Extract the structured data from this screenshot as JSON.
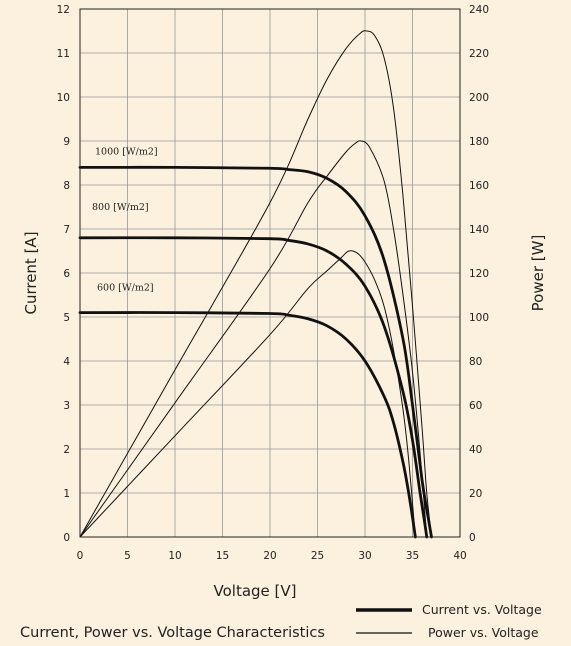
{
  "chart_data": {
    "type": "line",
    "title": "Current, Power vs. Voltage Characteristics",
    "xlabel": "Voltage [V]",
    "ylabel_left": "Current [A]",
    "ylabel_right": "Power [W]",
    "xlim": [
      0,
      40
    ],
    "ylim_left": [
      0,
      12
    ],
    "ylim_right": [
      0,
      240
    ],
    "xticks": [
      0,
      5,
      10,
      15,
      20,
      25,
      30,
      35,
      40
    ],
    "yticks_left": [
      0,
      1,
      2,
      3,
      4,
      5,
      6,
      7,
      8,
      9,
      10,
      11,
      12
    ],
    "yticks_right": [
      0,
      20,
      40,
      60,
      80,
      100,
      120,
      140,
      160,
      180,
      200,
      220,
      240
    ],
    "grid": true,
    "legend": {
      "position": "bottom-right",
      "entries": [
        {
          "label": "Current vs. Voltage",
          "style": "thick"
        },
        {
          "label": "Power vs. Voltage",
          "style": "thin"
        }
      ]
    },
    "series": [
      {
        "label": "1000 [W/m2]",
        "axis": "left",
        "style": "thick",
        "points": [
          [
            0,
            8.4
          ],
          [
            10,
            8.4
          ],
          [
            20,
            8.38
          ],
          [
            22,
            8.35
          ],
          [
            24,
            8.3
          ],
          [
            26,
            8.15
          ],
          [
            28,
            7.85
          ],
          [
            30,
            7.3
          ],
          [
            32,
            6.3
          ],
          [
            34,
            4.5
          ],
          [
            35,
            3.0
          ],
          [
            36,
            1.3
          ],
          [
            36.6,
            0.5
          ],
          [
            37,
            0
          ]
        ]
      },
      {
        "label": "800 [W/m2]",
        "axis": "left",
        "style": "thick",
        "points": [
          [
            0,
            6.8
          ],
          [
            10,
            6.8
          ],
          [
            20,
            6.78
          ],
          [
            22,
            6.74
          ],
          [
            24,
            6.66
          ],
          [
            26,
            6.5
          ],
          [
            28,
            6.2
          ],
          [
            30,
            5.7
          ],
          [
            32,
            4.8
          ],
          [
            34,
            3.3
          ],
          [
            35,
            2.2
          ],
          [
            35.8,
            1.0
          ],
          [
            36.3,
            0.3
          ],
          [
            36.5,
            0
          ]
        ]
      },
      {
        "label": "600 [W/m2]",
        "axis": "left",
        "style": "thick",
        "points": [
          [
            0,
            5.1
          ],
          [
            10,
            5.1
          ],
          [
            20,
            5.08
          ],
          [
            22,
            5.04
          ],
          [
            24,
            4.96
          ],
          [
            26,
            4.8
          ],
          [
            28,
            4.5
          ],
          [
            30,
            4.0
          ],
          [
            32,
            3.2
          ],
          [
            33,
            2.6
          ],
          [
            34,
            1.7
          ],
          [
            34.6,
            1.0
          ],
          [
            35.1,
            0.3
          ],
          [
            35.3,
            0
          ]
        ]
      },
      {
        "label": "",
        "axis": "right",
        "style": "thin",
        "points": [
          [
            0,
            0
          ],
          [
            10,
            76
          ],
          [
            20,
            152
          ],
          [
            24,
            190
          ],
          [
            26,
            208
          ],
          [
            28,
            222
          ],
          [
            29.5,
            229
          ],
          [
            30.2,
            230
          ],
          [
            31,
            228
          ],
          [
            32,
            218
          ],
          [
            33,
            195
          ],
          [
            34,
            155
          ],
          [
            35,
            105
          ],
          [
            36,
            50
          ],
          [
            36.5,
            20
          ],
          [
            37,
            0
          ]
        ]
      },
      {
        "label": "",
        "axis": "right",
        "style": "thin",
        "points": [
          [
            0,
            0
          ],
          [
            10,
            61
          ],
          [
            20,
            122
          ],
          [
            24,
            152
          ],
          [
            26,
            164
          ],
          [
            28,
            175
          ],
          [
            29,
            179
          ],
          [
            29.6,
            180
          ],
          [
            30.5,
            177
          ],
          [
            32,
            162
          ],
          [
            33,
            140
          ],
          [
            34,
            110
          ],
          [
            35,
            75
          ],
          [
            35.8,
            38
          ],
          [
            36.5,
            0
          ]
        ]
      },
      {
        "label": "",
        "axis": "right",
        "style": "thin",
        "points": [
          [
            0,
            0
          ],
          [
            10,
            46
          ],
          [
            20,
            92
          ],
          [
            24,
            113
          ],
          [
            26,
            121
          ],
          [
            27.5,
            127
          ],
          [
            28.3,
            130
          ],
          [
            29.2,
            129
          ],
          [
            30,
            125
          ],
          [
            31,
            117
          ],
          [
            32,
            105
          ],
          [
            33,
            85
          ],
          [
            34,
            58
          ],
          [
            34.6,
            35
          ],
          [
            35.3,
            0
          ]
        ]
      }
    ]
  }
}
